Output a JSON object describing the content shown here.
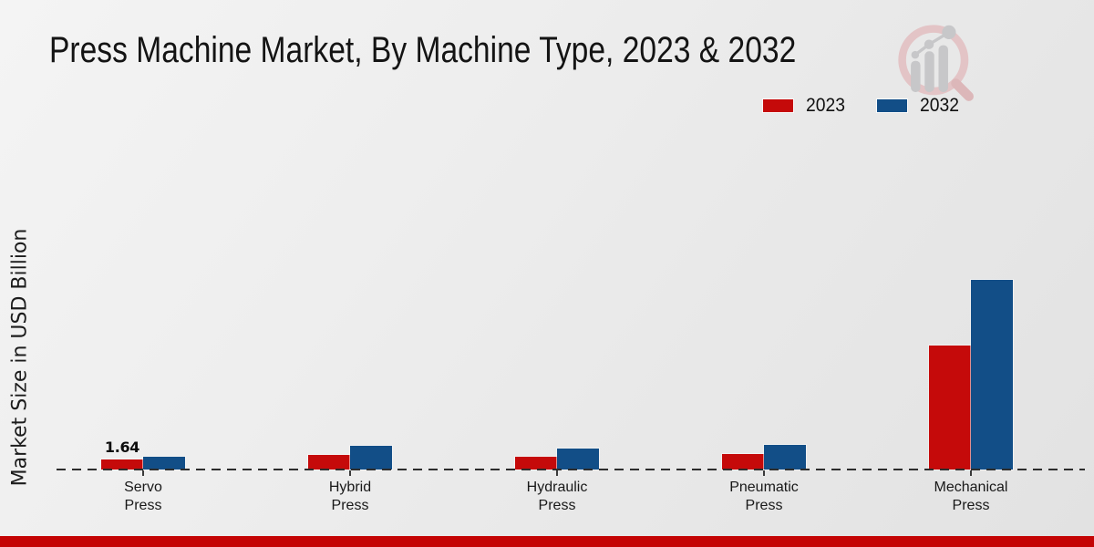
{
  "chart_data": {
    "type": "bar",
    "title": "Press Machine Market, By Machine Type, 2023 & 2032",
    "ylabel": "Market Size in USD Billion",
    "xlabel": "",
    "categories": [
      "Servo Press",
      "Hybrid Press",
      "Hydraulic Press",
      "Pneumatic Press",
      "Mechanical Press"
    ],
    "series": [
      {
        "name": "2023",
        "color": "#c50a0a",
        "values": [
          1.64,
          2.4,
          2.1,
          2.5,
          20.3
        ]
      },
      {
        "name": "2032",
        "color": "#124e87",
        "values": [
          2.1,
          3.9,
          3.4,
          4.0,
          31.0
        ]
      }
    ],
    "ylim": [
      0,
      35
    ],
    "grid": false,
    "legend_position": "top-right",
    "baseline_style": "dashed",
    "annotations": [
      {
        "category_index": 0,
        "series_index": 0,
        "text": "1.64"
      }
    ]
  },
  "branding": {
    "logo_icon": "magnifier-bar-chart-watermark-icon",
    "accent_bar_color": "#c40404"
  }
}
